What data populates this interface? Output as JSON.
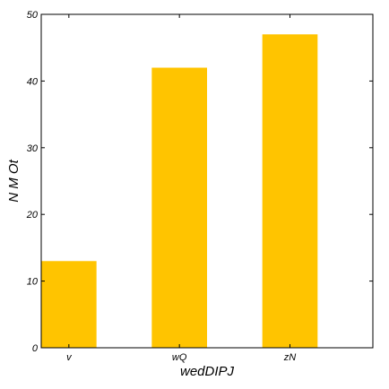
{
  "chart_data": {
    "type": "bar",
    "categories": [
      "v",
      "wQ",
      "zN"
    ],
    "values": [
      13,
      42,
      47
    ],
    "xlabel": "wedDIPJ",
    "ylabel": "N M Ot",
    "ylim": [
      0,
      50
    ],
    "yticks": [
      0,
      10,
      20,
      30,
      40,
      50
    ],
    "grid": false,
    "legend": "none",
    "bar_color": "#ffc400"
  }
}
